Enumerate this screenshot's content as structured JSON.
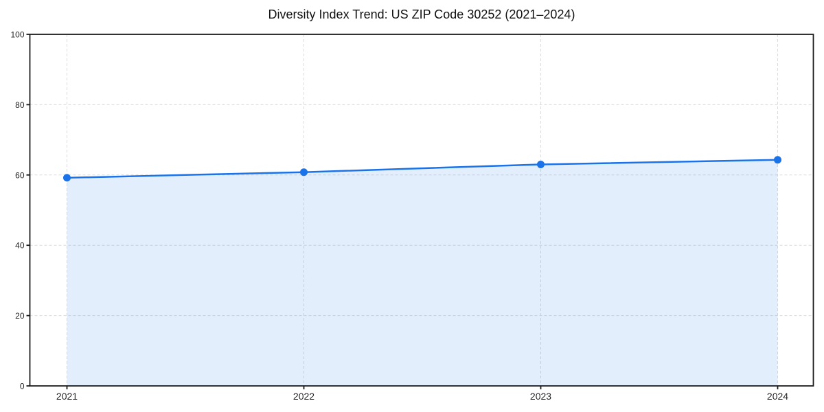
{
  "page": {
    "background_color": "#ffffff"
  },
  "chart_data": {
    "type": "area",
    "title": "Diversity Index Trend: US ZIP Code 30252 (2021–2024)",
    "categories": [
      "2021",
      "2022",
      "2023",
      "2024"
    ],
    "values": [
      59.2,
      60.8,
      63.0,
      64.3
    ],
    "xlabel": "",
    "ylabel": "",
    "ylim": [
      0,
      100
    ],
    "yticks": [
      0,
      20,
      40,
      60,
      80,
      100
    ],
    "grid": "dashed-both-axes",
    "legend": "none",
    "colors": {
      "line": "#1a73e8",
      "marker": "#1a73e8",
      "area_fill": "rgba(26,115,232,0.12)",
      "grid": "#dcdcdc",
      "spine": "#1c1c1c",
      "tick_text": "#262626",
      "title_text": "#111111"
    }
  }
}
